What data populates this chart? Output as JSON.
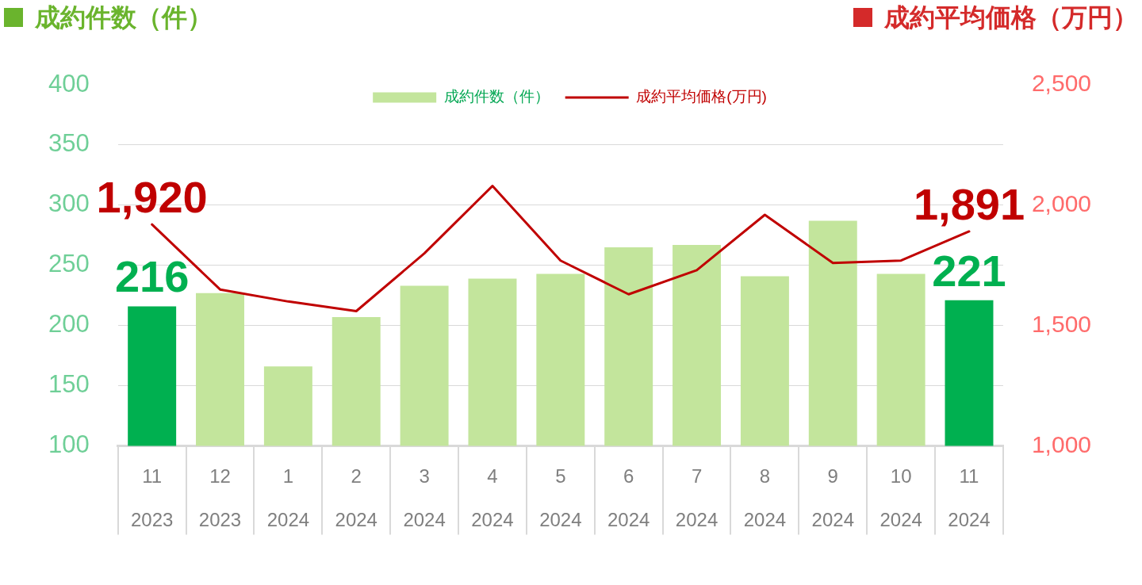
{
  "chart_data": {
    "type": "bar",
    "ylabel": "成約件数（件）",
    "y2label": "成約平均価格（万円）",
    "categories": [
      "11\n2023",
      "12\n2023",
      "1\n2024",
      "2\n2024",
      "3\n2024",
      "4\n2024",
      "5\n2024",
      "6\n2024",
      "7\n2024",
      "8\n2024",
      "9\n2024",
      "10\n2024",
      "11\n2024"
    ],
    "series": [
      {
        "name": "成約件数（件）",
        "color": "#c3e59c",
        "colors": [
          "#00b050",
          "#c3e59c",
          "#c3e59c",
          "#c3e59c",
          "#c3e59c",
          "#c3e59c",
          "#c3e59c",
          "#c3e59c",
          "#c3e59c",
          "#c3e59c",
          "#c3e59c",
          "#c3e59c",
          "#00b050"
        ],
        "values": [
          216,
          227,
          166,
          207,
          233,
          239,
          243,
          265,
          267,
          241,
          287,
          243,
          221
        ],
        "value_labels": [
          "216",
          null,
          null,
          null,
          null,
          null,
          null,
          null,
          null,
          null,
          null,
          null,
          "221"
        ]
      },
      {
        "name": "成約平均価格(万円)",
        "type": "line",
        "axis": "y2",
        "color": "#c00000",
        "values": [
          1920,
          1650,
          1600,
          1560,
          1800,
          2080,
          1770,
          1630,
          1730,
          1960,
          1760,
          1770,
          1891
        ],
        "value_labels": [
          "1,920",
          null,
          null,
          null,
          null,
          null,
          null,
          null,
          null,
          null,
          null,
          null,
          "1,891"
        ]
      }
    ],
    "ylim": [
      100,
      400
    ],
    "yticks": [
      100,
      150,
      200,
      250,
      300,
      350,
      400
    ],
    "y2lim": [
      1000,
      2500
    ],
    "y2ticks": [
      {
        "value": 1000,
        "label": "1,000"
      },
      {
        "value": 1500,
        "label": "1,500"
      },
      {
        "value": 2000,
        "label": "2,000"
      },
      {
        "value": 2500,
        "label": "2,500"
      }
    ],
    "grid": "y",
    "legend": "top",
    "marker": "none"
  }
}
